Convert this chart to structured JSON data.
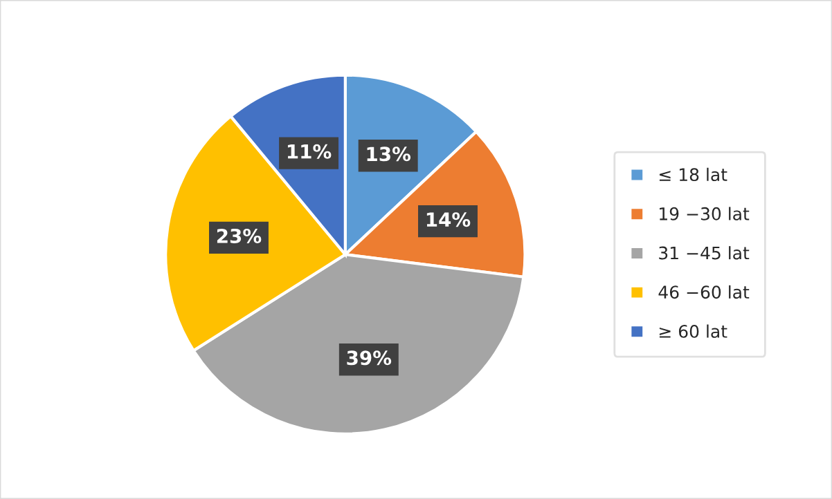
{
  "chart_data": {
    "type": "pie",
    "categories": [
      "≤ 18 lat",
      "19 −30 lat",
      "31 −45 lat",
      "46 −60 lat",
      "≥ 60 lat"
    ],
    "values": [
      13,
      14,
      39,
      23,
      11
    ],
    "colors": [
      "#5b9bd5",
      "#ed7d31",
      "#a5a5a5",
      "#ffc000",
      "#4472c4"
    ],
    "value_labels": [
      "13%",
      "14%",
      "39%",
      "23%",
      "11%"
    ],
    "legend": "right"
  }
}
